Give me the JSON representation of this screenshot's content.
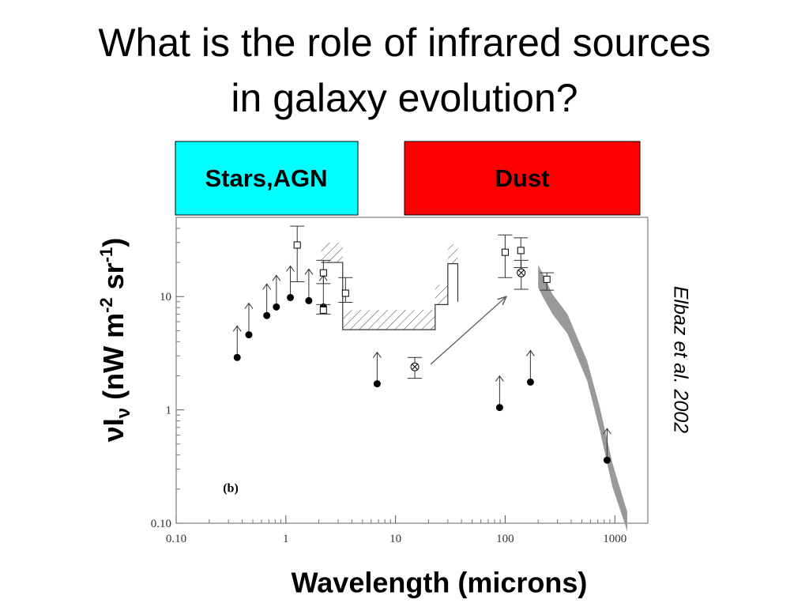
{
  "slide": {
    "title": [
      "What is the role of infrared sources",
      "in galaxy evolution?"
    ],
    "boxes": [
      {
        "label": "Stars,AGN",
        "color": "#00ffff"
      },
      {
        "label": "Dust",
        "color": "#ff0000"
      }
    ],
    "credit": "Elbaz et al. 2002"
  },
  "chart_data": {
    "type": "scatter",
    "log_x": true,
    "log_y": true,
    "x_label": "Wavelength (microns)",
    "y_label_parts": [
      "νI",
      "ν",
      " (nW m",
      "-2",
      " sr",
      "-1",
      ")"
    ],
    "panel_label": "(b)",
    "xlim": [
      0.1,
      2000
    ],
    "ylim": [
      0.1,
      50
    ],
    "xticks": [
      {
        "value": 0.1,
        "label": "0.10"
      },
      1,
      10,
      100,
      1000
    ],
    "yticks": [
      {
        "value": 0.1,
        "label": "0.10"
      },
      1,
      10
    ],
    "series": [
      {
        "marker": "filled",
        "lower_limit": true,
        "color": "#000000",
        "x": [
          0.36,
          0.46,
          0.67,
          0.82,
          1.1,
          1.62,
          2.2,
          6.8,
          89,
          170,
          850
        ],
        "values": [
          2.9,
          4.6,
          6.8,
          8.1,
          9.8,
          9.2,
          8.1,
          1.7,
          1.05,
          1.76,
          0.36
        ]
      },
      {
        "marker": "square",
        "color": "#000000",
        "x": [
          1.27,
          2.2,
          2.2,
          3.5,
          100,
          139,
          240
        ],
        "values": [
          28.5,
          16.2,
          7.6,
          10.7,
          24.6,
          25.5,
          14.2
        ],
        "ylow": [
          13.5,
          13,
          7,
          8.9,
          14.7,
          18,
          11.4
        ],
        "yhigh": [
          41.8,
          20.9,
          8.5,
          14.7,
          35,
          33,
          16.2
        ]
      },
      {
        "marker": "circled",
        "color": "#000000",
        "x": [
          15,
          140
        ],
        "values": [
          2.4,
          16.2
        ],
        "ylow": [
          1.9,
          11.6
        ],
        "yhigh": [
          2.9,
          20.9
        ]
      }
    ],
    "step": {
      "x": [
        2.1,
        3.3,
        3.3,
        23,
        23,
        30,
        30,
        37,
        37
      ],
      "values": [
        20,
        20,
        5.1,
        5.1,
        8.5,
        8.5,
        19.5,
        19.5,
        9
      ]
    },
    "band": {
      "color": "#999999",
      "x": [
        200,
        220,
        270,
        370,
        560,
        730,
        950,
        1300
      ],
      "ylow": [
        12,
        10,
        7,
        4.7,
        1.8,
        0.66,
        0.21,
        0.085
      ],
      "yhigh": [
        19,
        16,
        10.5,
        7,
        2.7,
        1.05,
        0.34,
        0.125
      ]
    }
  }
}
